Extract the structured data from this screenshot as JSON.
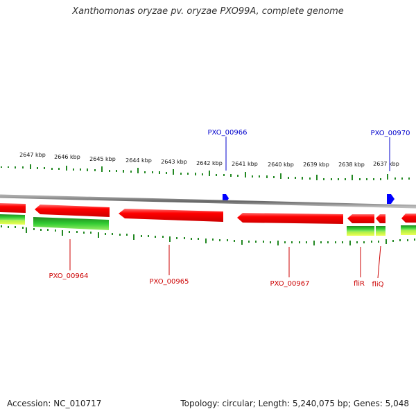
{
  "title": "Xanthomonas oryzae pv. oryzae PXO99A, complete genome",
  "footer": {
    "accession": "Accession: NC_010717",
    "summary": "Topology: circular; Length: 5,240,075 bp; Genes: 5,048"
  },
  "kbp_labels": [
    "2647 kbp",
    "2646 kbp",
    "2645 kbp",
    "2644 kbp",
    "2643 kbp",
    "2642 kbp",
    "2641 kbp",
    "2640 kbp",
    "2639 kbp",
    "2638 kbp",
    "2637 kbp"
  ],
  "genes_top": [
    "PXO_00966",
    "PXO_00970"
  ],
  "genes_bottom": [
    "PXO_00964",
    "PXO_00965",
    "PXO_00967",
    "fliR",
    "fliQ"
  ],
  "colors": {
    "forward_gene": "#0000ff",
    "reverse_gene": "#ff0000",
    "cds_green": "#22bb22",
    "backbone": "#888888",
    "ticks": "#228822"
  }
}
